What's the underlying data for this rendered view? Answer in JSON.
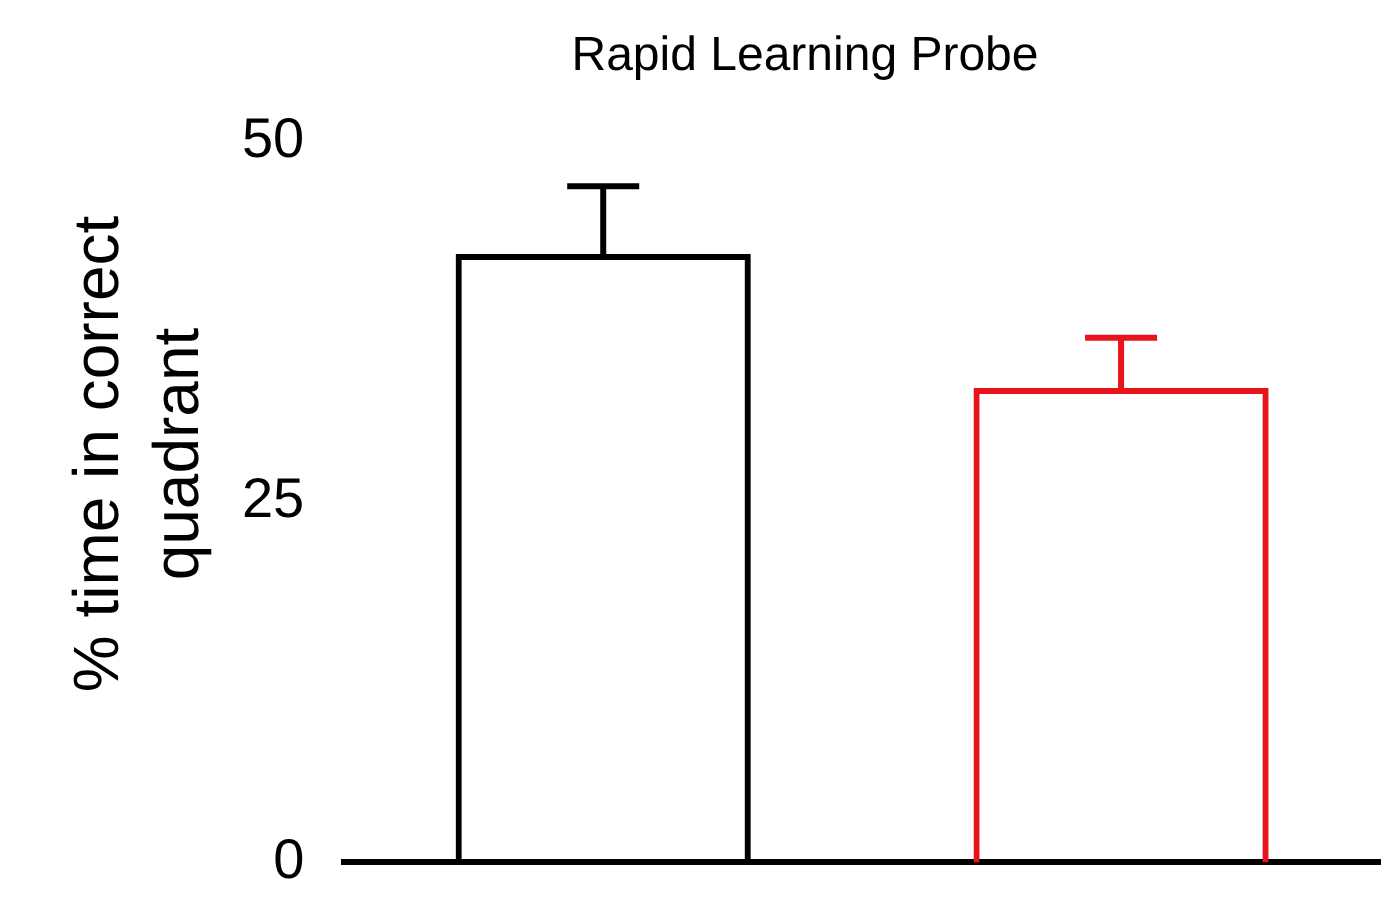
{
  "chart_data": {
    "type": "bar",
    "title": "Rapid Learning Probe",
    "ylabel": "% time in correct quadrant",
    "categories": [
      null,
      null
    ],
    "values": [
      42.2,
      32.9
    ],
    "colors": [
      "#000000",
      "#e8141c"
    ],
    "errors": [
      [
        42.2,
        46.9
      ],
      [
        32.9,
        36.4
      ]
    ],
    "ylim": [
      0,
      50
    ],
    "yticks": [
      0,
      25,
      50
    ],
    "grid": false,
    "legend": false
  }
}
